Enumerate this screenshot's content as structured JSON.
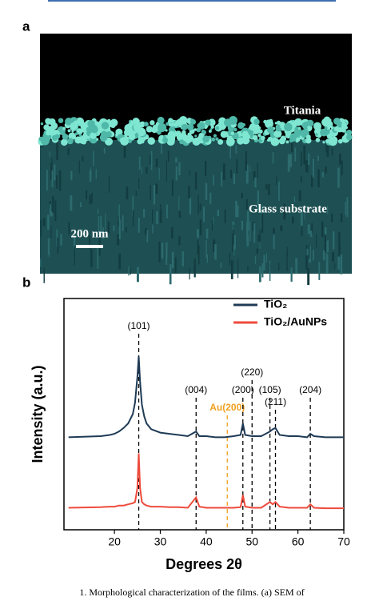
{
  "panel_a": {
    "label": "a",
    "titania": "Titania",
    "substrate": "Glass substrate",
    "scale": "200 nm"
  },
  "chart_data": {
    "type": "line",
    "panel_label": "b",
    "xlabel": "Degrees 2θ",
    "ylabel": "Intensity (a.u.)",
    "xlim": [
      9,
      70
    ],
    "xticks": [
      20,
      30,
      40,
      50,
      60,
      70
    ],
    "ylim": [
      0,
      100
    ],
    "legend": "upper right",
    "series": [
      {
        "name": "TiO₂",
        "color": "#1f3b56",
        "x": [
          10,
          17,
          19,
          20,
          21,
          22,
          23,
          24,
          24.5,
          25,
          25.3,
          25.6,
          26,
          26.5,
          27,
          28,
          30,
          32,
          34,
          36,
          37.8,
          38.5,
          40,
          42,
          44,
          46,
          47.5,
          48,
          48.5,
          50,
          52,
          53.9,
          54.5,
          55.1,
          56,
          58,
          60,
          62,
          62.7,
          63.5,
          66,
          70
        ],
        "values": [
          40,
          40.5,
          41,
          41.5,
          42.5,
          44,
          46,
          50,
          55,
          66,
          75,
          64,
          54,
          49,
          46,
          43.5,
          42,
          41.5,
          41,
          40.5,
          42.5,
          40.5,
          40.5,
          40,
          40,
          40.5,
          41,
          46,
          41,
          40.5,
          40.5,
          42.5,
          43.5,
          44,
          41,
          40.5,
          40.5,
          40,
          41.5,
          40.5,
          40,
          40
        ]
      },
      {
        "name": "TiO₂/AuNPs",
        "color": "#ee4b3c",
        "x": [
          10,
          17,
          19,
          20,
          21,
          22,
          23,
          24,
          24.5,
          25,
          25.3,
          25.6,
          26,
          26.5,
          27,
          28,
          30,
          32,
          34,
          36,
          37.8,
          38.5,
          40,
          42,
          44,
          46,
          47.5,
          48,
          48.5,
          50,
          52,
          53.9,
          54.5,
          55.1,
          56,
          58,
          60,
          62,
          62.7,
          63.5,
          66,
          70
        ],
        "values": [
          9.5,
          9.8,
          10,
          10,
          10.5,
          10.5,
          11,
          11.5,
          12,
          18,
          33,
          18,
          12,
          11,
          10.5,
          10,
          10,
          9.8,
          9.8,
          9.5,
          14,
          10,
          9.5,
          9.5,
          9.5,
          9.5,
          9.8,
          15,
          10,
          9.5,
          9.5,
          12,
          11,
          12,
          10,
          9.5,
          9.5,
          9.5,
          11,
          9.5,
          9.3,
          9.3
        ]
      }
    ],
    "reflections": [
      {
        "label": "(101)",
        "position": 25.3,
        "color": "#000000"
      },
      {
        "label": "(004)",
        "position": 37.8,
        "color": "#000000"
      },
      {
        "label": "Au(200)",
        "position": 44.6,
        "color": "#f0a020"
      },
      {
        "label": "(200)",
        "position": 48.0,
        "color": "#000000"
      },
      {
        "label": "(220)",
        "position": 50.0,
        "color": "#000000"
      },
      {
        "label": "(105)",
        "position": 53.9,
        "color": "#000000"
      },
      {
        "label": "(211)",
        "position": 55.1,
        "color": "#000000"
      },
      {
        "label": "(204)",
        "position": 62.7,
        "color": "#000000"
      }
    ]
  },
  "caption": "1. Morphological characterization of the films. (a) SEM of"
}
